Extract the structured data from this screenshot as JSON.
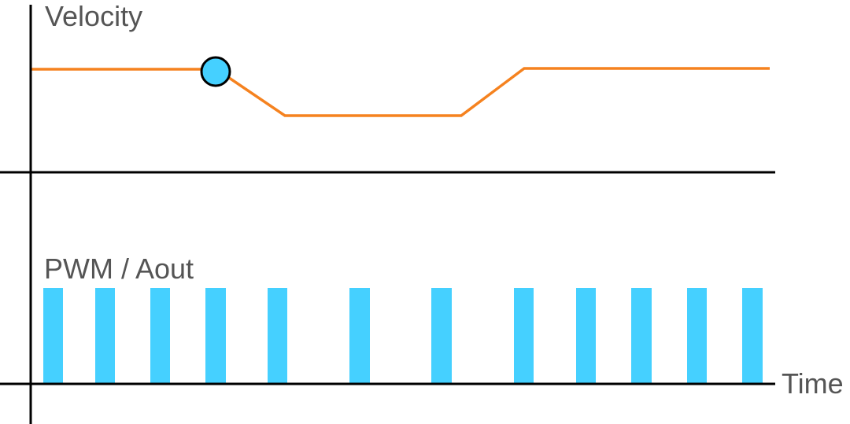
{
  "labels": {
    "velocity": "Velocity",
    "pwm": "PWM / Aout",
    "time": "Time"
  },
  "colors": {
    "axis": "#000000",
    "velocity_line": "#F5821F",
    "pwm_pulse": "#45D0FF",
    "marker_fill": "#45D0FF",
    "text": "#555555"
  }
}
